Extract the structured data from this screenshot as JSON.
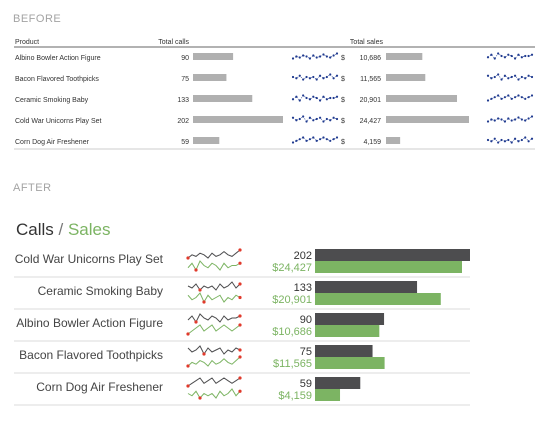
{
  "sections": {
    "before_label": "BEFORE",
    "after_label": "AFTER"
  },
  "before": {
    "headers": {
      "product": "Product",
      "calls": "Total calls",
      "sales": "Total sales"
    },
    "currency_symbol": "$",
    "bar_color": "#b0b0b0",
    "spark_color": "#1f3a8f"
  },
  "after": {
    "title_calls": "Calls",
    "title_sep": " / ",
    "title_sales": "Sales",
    "calls_color": "#4d4d4f",
    "sales_color": "#7cb463",
    "highlight_color": "#e03a2c"
  },
  "chart_data": [
    {
      "type": "table",
      "title": "BEFORE",
      "columns": [
        "Product",
        "Total calls",
        "Total sales"
      ],
      "rows": [
        {
          "product": "Albino Bowler Action Figure",
          "calls": 90,
          "calls_label": "90",
          "sales": 10686,
          "sales_label": "10,686"
        },
        {
          "product": "Bacon Flavored Toothpicks",
          "calls": 75,
          "calls_label": "75",
          "sales": 11565,
          "sales_label": "11,565"
        },
        {
          "product": "Ceramic Smoking Baby",
          "calls": 133,
          "calls_label": "133",
          "sales": 20901,
          "sales_label": "20,901"
        },
        {
          "product": "Cold War Unicorns Play Set",
          "calls": 202,
          "calls_label": "202",
          "sales": 24427,
          "sales_label": "24,427"
        },
        {
          "product": "Corn Dog Air Freshener",
          "calls": 59,
          "calls_label": "59",
          "sales": 4159,
          "sales_label": "4,159"
        }
      ]
    },
    {
      "type": "bar",
      "title": "AFTER",
      "series": [
        {
          "name": "Calls",
          "values": [
            202,
            133,
            90,
            75,
            59
          ]
        },
        {
          "name": "Sales",
          "values": [
            24427,
            20901,
            10686,
            11565,
            4159
          ]
        }
      ],
      "categories": [
        "Cold War Unicorns Play Set",
        "Ceramic Smoking Baby",
        "Albino Bowler Action Figure",
        "Bacon Flavored Toothpicks",
        "Corn Dog Air Freshener"
      ],
      "calls_labels": [
        "202",
        "133",
        "90",
        "75",
        "59"
      ],
      "sales_labels": [
        "$24,427",
        "$20,901",
        "$10,686",
        "$11,565",
        "$4,159"
      ]
    }
  ]
}
